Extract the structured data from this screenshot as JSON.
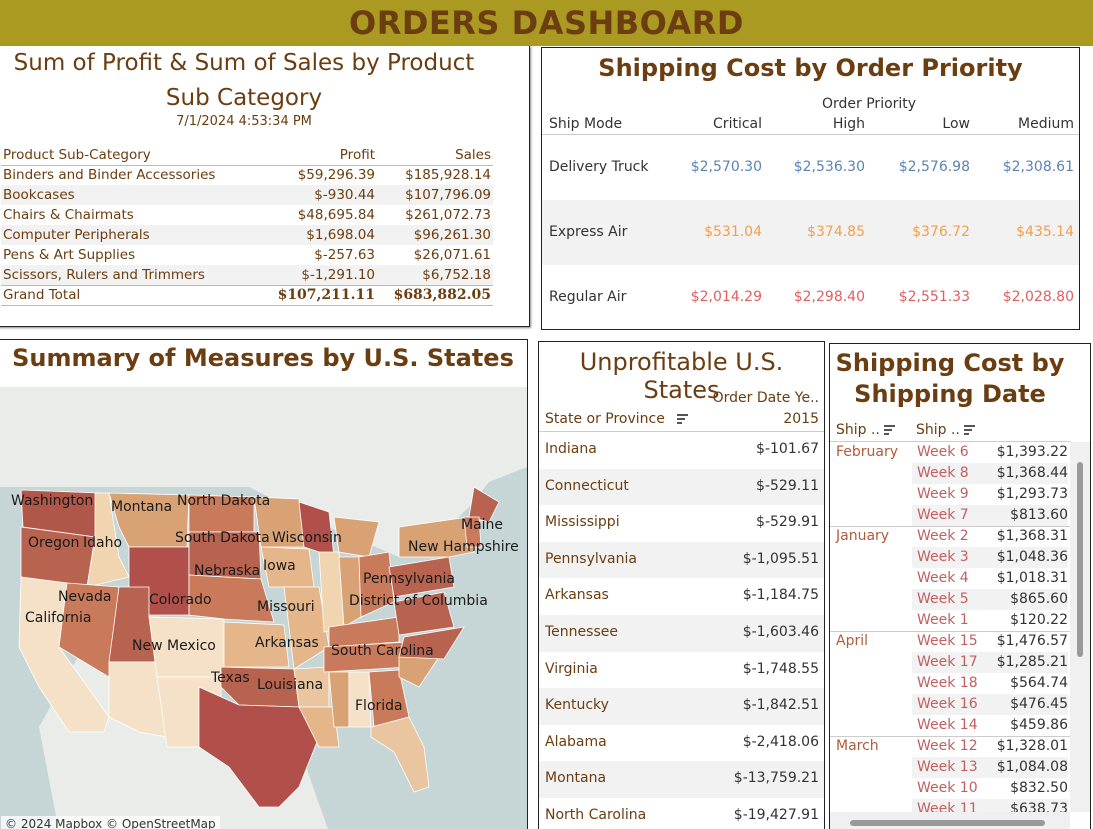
{
  "banner": {
    "title": "ORDERS DASHBOARD"
  },
  "profit_sales": {
    "title_line1": "Sum of Profit & Sum of Sales by Product",
    "title_line2": "Sub Category",
    "timestamp": "7/1/2024 4:53:34 PM",
    "headers": {
      "category": "Product Sub-Category",
      "profit": "Profit",
      "sales": "Sales"
    },
    "rows": [
      {
        "category": "Binders and Binder Accessories",
        "profit": "$59,296.39",
        "sales": "$185,928.14"
      },
      {
        "category": "Bookcases",
        "profit": "$-930.44",
        "sales": "$107,796.09"
      },
      {
        "category": "Chairs & Chairmats",
        "profit": "$48,695.84",
        "sales": "$261,072.73"
      },
      {
        "category": "Computer Peripherals",
        "profit": "$1,698.04",
        "sales": "$96,261.30"
      },
      {
        "category": "Pens & Art Supplies",
        "profit": "$-257.63",
        "sales": "$26,071.61"
      },
      {
        "category": "Scissors, Rulers and Trimmers",
        "profit": "$-1,291.10",
        "sales": "$6,752.18"
      }
    ],
    "total": {
      "label": "Grand Total",
      "profit": "$107,211.11",
      "sales": "$683,882.05"
    }
  },
  "shipping_priority": {
    "title": "Shipping Cost by Order Priority",
    "column_group": "Order Priority",
    "row_header": "Ship Mode",
    "columns": [
      "Critical",
      "High",
      "Low",
      "Medium"
    ],
    "rows": [
      {
        "mode": "Delivery Truck",
        "values": [
          "$2,570.30",
          "$2,536.30",
          "$2,576.98",
          "$2,308.61"
        ],
        "color": "#5b84b1"
      },
      {
        "mode": "Express Air",
        "values": [
          "$531.04",
          "$374.85",
          "$376.72",
          "$435.14"
        ],
        "color": "#f0a050"
      },
      {
        "mode": "Regular Air",
        "values": [
          "$2,014.29",
          "$2,298.40",
          "$2,551.33",
          "$2,028.80"
        ],
        "color": "#e06060"
      }
    ]
  },
  "map": {
    "title": "Summary of Measures by U.S. States",
    "credit": "© 2024 Mapbox © OpenStreetMap",
    "labels": {
      "washington": "Washington",
      "montana": "Montana",
      "north_dakota": "North Dakota",
      "maine": "Maine",
      "oregon": "Oregon",
      "idaho": "Idaho",
      "south_dakota": "South Dakota",
      "wisconsin": "Wisconsin",
      "new_hampshire": "New Hampshire",
      "nebraska": "Nebraska",
      "iowa": "Iowa",
      "pennsylvania": "Pennsylvania",
      "nevada": "Nevada",
      "colorado": "Colorado",
      "district_of_columbia": "District of Columbia",
      "california": "California",
      "missouri": "Missouri",
      "new_mexico": "New Mexico",
      "arkansas": "Arkansas",
      "south_carolina": "South Carolina",
      "texas": "Texas",
      "louisiana": "Louisiana",
      "florida": "Florida"
    }
  },
  "unprofitable": {
    "title": "Unprofitable U.S. States",
    "column_group": "Order Date Ye..",
    "year": "2015",
    "row_header": "State or Province",
    "rows": [
      {
        "state": "Indiana",
        "value": "$-101.67"
      },
      {
        "state": "Connecticut",
        "value": "$-529.11"
      },
      {
        "state": "Mississippi",
        "value": "$-529.91"
      },
      {
        "state": "Pennsylvania",
        "value": "$-1,095.51"
      },
      {
        "state": "Arkansas",
        "value": "$-1,184.75"
      },
      {
        "state": "Tennessee",
        "value": "$-1,603.46"
      },
      {
        "state": "Virginia",
        "value": "$-1,748.55"
      },
      {
        "state": "Kentucky",
        "value": "$-1,842.51"
      },
      {
        "state": "Alabama",
        "value": "$-2,418.06"
      },
      {
        "state": "Montana",
        "value": "$-13,759.21"
      },
      {
        "state": "North Carolina",
        "value": "$-19,427.91"
      }
    ]
  },
  "ship_date": {
    "title_line1": "Shipping Cost by",
    "title_line2": "Shipping Date",
    "col1": "Ship ..",
    "col2": "Ship ..",
    "groups": [
      {
        "month": "February",
        "weeks": [
          {
            "week": "Week 6",
            "value": "$1,393.22"
          },
          {
            "week": "Week 8",
            "value": "$1,368.44"
          },
          {
            "week": "Week 9",
            "value": "$1,293.73"
          },
          {
            "week": "Week 7",
            "value": "$813.60"
          }
        ]
      },
      {
        "month": "January",
        "weeks": [
          {
            "week": "Week 2",
            "value": "$1,368.31"
          },
          {
            "week": "Week 3",
            "value": "$1,048.36"
          },
          {
            "week": "Week 4",
            "value": "$1,018.31"
          },
          {
            "week": "Week 5",
            "value": "$865.60"
          },
          {
            "week": "Week 1",
            "value": "$120.22"
          }
        ]
      },
      {
        "month": "April",
        "weeks": [
          {
            "week": "Week 15",
            "value": "$1,476.57"
          },
          {
            "week": "Week 17",
            "value": "$1,285.21"
          },
          {
            "week": "Week 18",
            "value": "$564.74"
          },
          {
            "week": "Week 16",
            "value": "$476.45"
          },
          {
            "week": "Week 14",
            "value": "$459.86"
          }
        ]
      },
      {
        "month": "March",
        "weeks": [
          {
            "week": "Week 12",
            "value": "$1,328.01"
          },
          {
            "week": "Week 13",
            "value": "$1,084.08"
          },
          {
            "week": "Week 10",
            "value": "$832.50"
          },
          {
            "week": "Week 11",
            "value": "$638.73"
          }
        ]
      }
    ]
  }
}
